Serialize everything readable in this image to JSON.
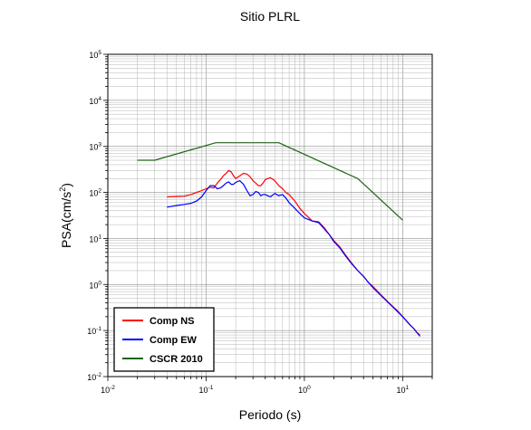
{
  "chart_data": {
    "type": "line",
    "title": "Sitio PLRL",
    "xlabel": "Periodo (s)",
    "ylabel_base": "PSA(cm/s",
    "ylabel_exp": "2",
    "ylabel_close": ")",
    "x_scale": "log",
    "y_scale": "log",
    "xlim": [
      0.01,
      20
    ],
    "ylim": [
      0.01,
      100000
    ],
    "grid": true,
    "legend_position": "bottom-left",
    "x_ticks": [
      {
        "value": 0.01,
        "base": "10",
        "exp": "-2"
      },
      {
        "value": 0.1,
        "base": "10",
        "exp": "-1"
      },
      {
        "value": 1,
        "base": "10",
        "exp": "0"
      },
      {
        "value": 10,
        "base": "10",
        "exp": "1"
      }
    ],
    "y_ticks": [
      {
        "value": 0.01,
        "base": "10",
        "exp": "-2"
      },
      {
        "value": 0.1,
        "base": "10",
        "exp": "-1"
      },
      {
        "value": 1,
        "base": "10",
        "exp": "0"
      },
      {
        "value": 10,
        "base": "10",
        "exp": "1"
      },
      {
        "value": 100,
        "base": "10",
        "exp": "2"
      },
      {
        "value": 1000,
        "base": "10",
        "exp": "3"
      },
      {
        "value": 10000,
        "base": "10",
        "exp": "4"
      },
      {
        "value": 100000,
        "base": "10",
        "exp": "5"
      }
    ],
    "series": [
      {
        "name": "Comp NS",
        "color": "#ff0000",
        "x": [
          0.04,
          0.05,
          0.06,
          0.07,
          0.08,
          0.09,
          0.1,
          0.11,
          0.12,
          0.13,
          0.14,
          0.15,
          0.16,
          0.17,
          0.18,
          0.19,
          0.2,
          0.22,
          0.24,
          0.26,
          0.28,
          0.3,
          0.32,
          0.34,
          0.36,
          0.38,
          0.4,
          0.45,
          0.5,
          0.55,
          0.6,
          0.65,
          0.7,
          0.8,
          0.9,
          1.0,
          1.2,
          1.4,
          1.6,
          1.8,
          2.0,
          2.3,
          2.6,
          3.0,
          3.5,
          4.0,
          4.5,
          5.0,
          6.0,
          7.0,
          8.0,
          9.0,
          10,
          11,
          12,
          13,
          14,
          15
        ],
        "y": [
          80,
          82,
          83,
          90,
          100,
          110,
          120,
          130,
          125,
          160,
          190,
          230,
          260,
          300,
          280,
          230,
          200,
          230,
          260,
          250,
          220,
          180,
          160,
          140,
          140,
          160,
          190,
          210,
          180,
          140,
          120,
          100,
          90,
          65,
          45,
          35,
          24,
          23,
          17,
          12,
          9,
          6.5,
          4.5,
          3,
          2,
          1.5,
          1.1,
          0.9,
          0.6,
          0.43,
          0.33,
          0.26,
          0.2,
          0.16,
          0.13,
          0.11,
          0.09,
          0.08
        ]
      },
      {
        "name": "Comp EW",
        "color": "#0000ff",
        "x": [
          0.04,
          0.05,
          0.06,
          0.07,
          0.08,
          0.09,
          0.1,
          0.11,
          0.12,
          0.13,
          0.14,
          0.15,
          0.16,
          0.17,
          0.18,
          0.19,
          0.2,
          0.22,
          0.24,
          0.26,
          0.28,
          0.3,
          0.32,
          0.34,
          0.36,
          0.38,
          0.4,
          0.45,
          0.5,
          0.55,
          0.6,
          0.65,
          0.7,
          0.8,
          0.9,
          1.0,
          1.2,
          1.4,
          1.6,
          1.8,
          2.0,
          2.3,
          2.6,
          3.0,
          3.5,
          4.0,
          4.5,
          5.0,
          6.0,
          7.0,
          8.0,
          9.0,
          10,
          11,
          12,
          13,
          14,
          15
        ],
        "y": [
          48,
          52,
          55,
          58,
          65,
          80,
          110,
          140,
          140,
          120,
          125,
          140,
          160,
          170,
          150,
          150,
          165,
          180,
          150,
          110,
          85,
          90,
          105,
          100,
          85,
          90,
          90,
          80,
          95,
          85,
          90,
          75,
          60,
          45,
          35,
          28,
          24,
          22,
          16,
          12,
          8.5,
          6.2,
          4.3,
          2.9,
          2,
          1.5,
          1.1,
          0.85,
          0.58,
          0.42,
          0.32,
          0.25,
          0.2,
          0.16,
          0.13,
          0.11,
          0.09,
          0.075
        ]
      },
      {
        "name": "CSCR 2010",
        "color": "#1e6414",
        "x": [
          0.02,
          0.03,
          0.125,
          0.55,
          3.5,
          10
        ],
        "y": [
          500,
          500,
          1200,
          1200,
          200,
          25
        ]
      }
    ]
  }
}
